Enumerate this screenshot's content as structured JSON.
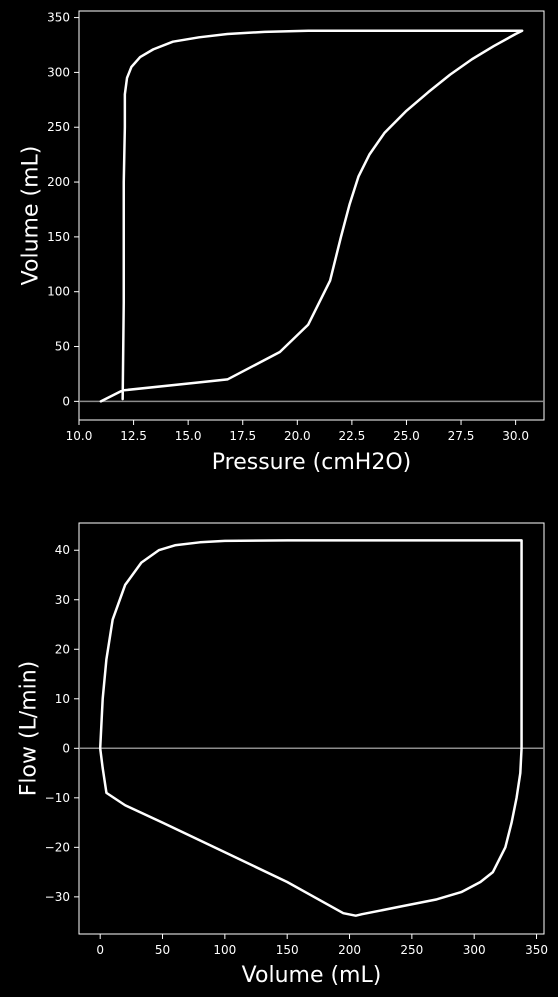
{
  "chart_data": [
    {
      "type": "line",
      "title": "",
      "xlabel": "Pressure (cmH2O)",
      "ylabel": "Volume (mL)",
      "xlim": [
        10.0,
        31.3
      ],
      "ylim": [
        -17,
        356
      ],
      "xticks": [
        10.0,
        12.5,
        15.0,
        17.5,
        20.0,
        22.5,
        25.0,
        27.5,
        30.0
      ],
      "xtick_labels": [
        "10.0",
        "12.5",
        "15.0",
        "17.5",
        "20.0",
        "22.5",
        "25.0",
        "27.5",
        "30.0"
      ],
      "yticks": [
        0,
        50,
        100,
        150,
        200,
        250,
        300,
        350
      ],
      "ytick_labels": [
        "0",
        "50",
        "100",
        "150",
        "200",
        "250",
        "300",
        "350"
      ],
      "grid": false,
      "reference_line": {
        "axis": "y",
        "value": 0,
        "color": "#8c8c8c"
      },
      "series": [
        {
          "color": "#ffffff",
          "x": [
            12.0,
            12.05,
            12.05,
            12.1,
            12.1,
            12.2,
            12.4,
            12.8,
            13.4,
            14.3,
            15.5,
            16.8,
            18.5,
            20.5,
            23.0,
            26.0,
            28.5,
            30.3,
            30.0,
            29.0,
            28.0,
            27.0,
            26.0,
            25.0,
            24.0,
            23.3,
            22.8,
            22.4,
            22.0,
            21.5,
            20.5,
            19.2,
            16.8,
            12.0,
            11.0
          ],
          "y": [
            2,
            90,
            200,
            250,
            280,
            295,
            305,
            314,
            321,
            328,
            332,
            335,
            337,
            338,
            338,
            338,
            338,
            338,
            335,
            324,
            312,
            298,
            282,
            265,
            245,
            225,
            205,
            180,
            150,
            110,
            70,
            45,
            20,
            10,
            0
          ]
        }
      ]
    },
    {
      "type": "line",
      "title": "",
      "xlabel": "Volume (mL)",
      "ylabel": "Flow (L/min)",
      "xlim": [
        -17,
        356
      ],
      "ylim": [
        -37.5,
        45.5
      ],
      "xticks": [
        0,
        50,
        100,
        150,
        200,
        250,
        300,
        350
      ],
      "xtick_labels": [
        "0",
        "50",
        "100",
        "150",
        "200",
        "250",
        "300",
        "350"
      ],
      "yticks": [
        -30,
        -20,
        -10,
        0,
        10,
        20,
        30,
        40
      ],
      "ytick_labels": [
        "−30",
        "−20",
        "−10",
        "0",
        "10",
        "20",
        "30",
        "40"
      ],
      "grid": false,
      "reference_line": {
        "axis": "y",
        "value": 0,
        "color": "#8c8c8c"
      },
      "series": [
        {
          "color": "#ffffff",
          "x": [
            0,
            2,
            5,
            10,
            20,
            33,
            47,
            60,
            80,
            100,
            150,
            200,
            250,
            300,
            338,
            338,
            338,
            337,
            334,
            330,
            325,
            315,
            305,
            290,
            270,
            240,
            210,
            205,
            195,
            150,
            100,
            50,
            20,
            5,
            2,
            0
          ],
          "y": [
            0,
            10,
            18,
            26,
            33,
            37.5,
            40,
            41,
            41.6,
            41.9,
            42,
            42,
            42,
            42,
            42,
            20,
            0,
            -5,
            -10,
            -15,
            -20,
            -25,
            -27,
            -29,
            -30.5,
            -32,
            -33.5,
            -33.8,
            -33.3,
            -27,
            -21,
            -15,
            -11.5,
            -9,
            -4,
            0
          ]
        }
      ]
    }
  ]
}
